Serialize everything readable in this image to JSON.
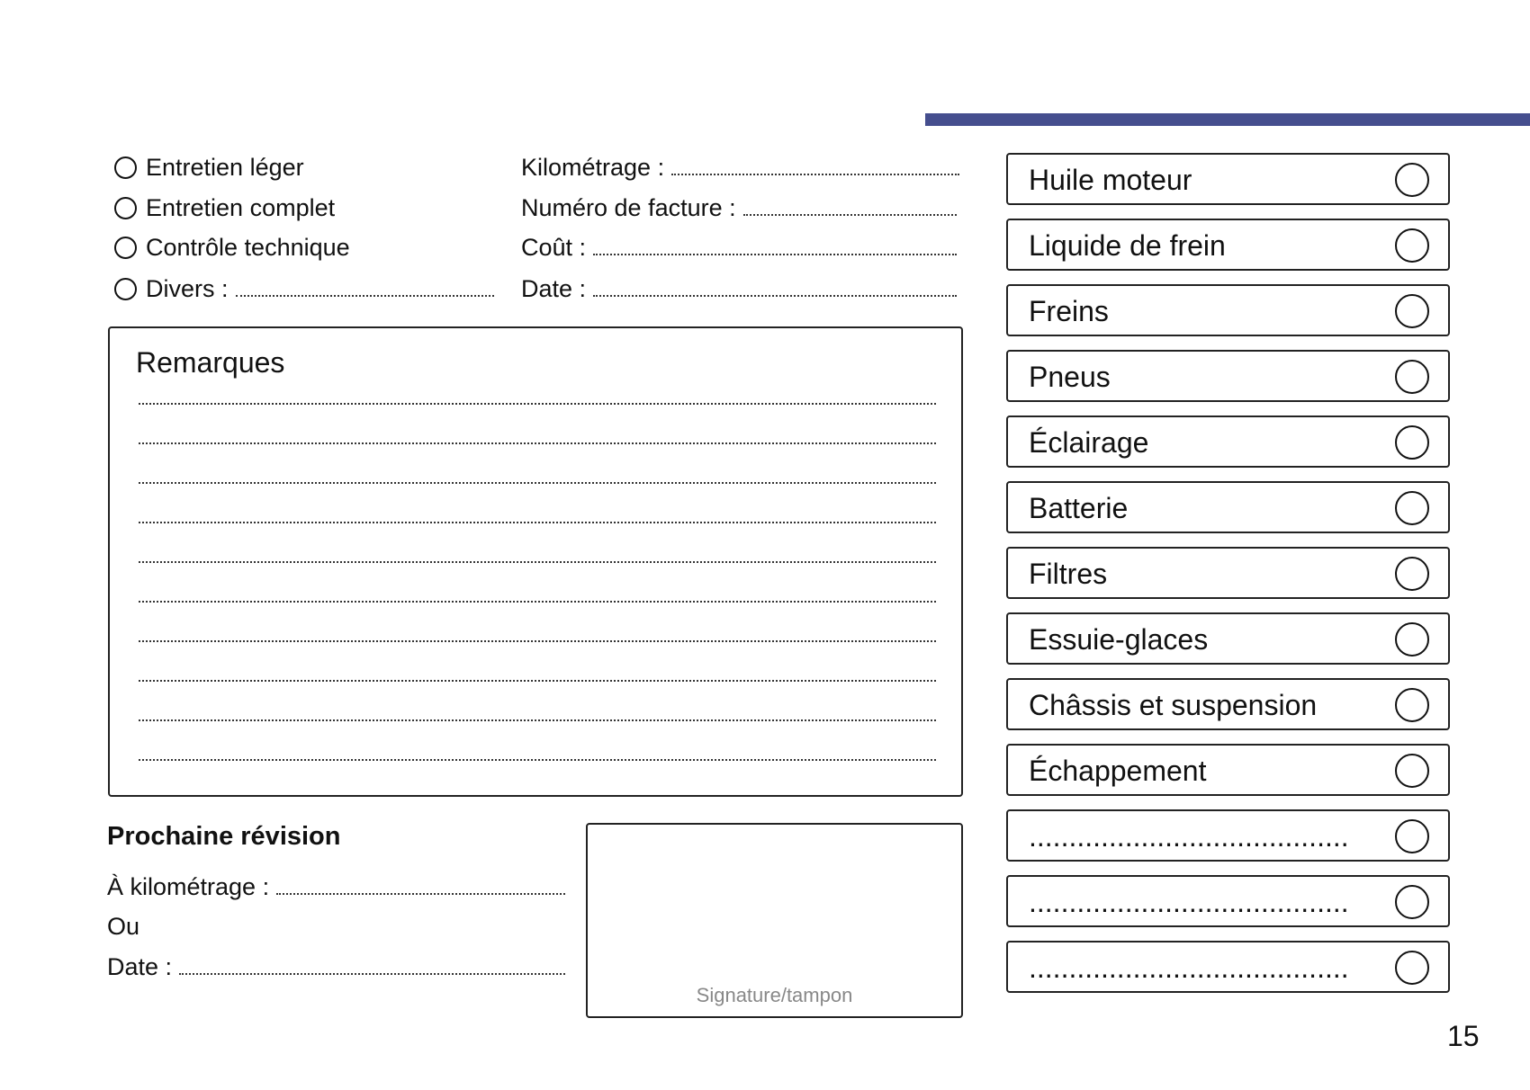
{
  "header": {
    "accent_color": "#454e8e"
  },
  "service_types": [
    {
      "label": "Entretien léger"
    },
    {
      "label": "Entretien complet"
    },
    {
      "label": "Contrôle technique"
    },
    {
      "label": "Divers :"
    }
  ],
  "fields": [
    {
      "label": "Kilométrage :"
    },
    {
      "label": "Numéro de facture :"
    },
    {
      "label": "Coût :"
    },
    {
      "label": "Date :"
    }
  ],
  "remarks": {
    "title": "Remarques",
    "line_count": 10
  },
  "next_service": {
    "title": "Prochaine révision",
    "mileage_label": "À kilométrage :",
    "or_label": "Ou",
    "date_label": "Date :"
  },
  "signature": {
    "label": "Signature/tampon"
  },
  "checklist": [
    "Huile moteur",
    "Liquide de frein",
    "Freins",
    "Pneus",
    "Éclairage",
    "Batterie",
    "Filtres",
    "Essuie-glaces",
    "Châssis et suspension",
    "Échappement",
    "........................................",
    "........................................",
    "........................................"
  ],
  "page_number": "15"
}
